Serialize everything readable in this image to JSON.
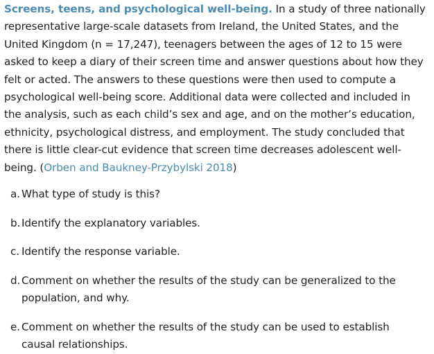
{
  "exercise": {
    "title": "Screens, teens, and psychological well-being.",
    "body": " In a study of three nationally representative large-scale datasets from Ireland, the United States, and the United Kingdom (n = 17,247), teenagers between the ages of 12 to 15 were asked to keep a diary of their screen time and answer questions about how they felt or acted. The answers to these questions were then used to compute a psychological well-being score. Additional data were collected and included in the analysis, such as each child’s sex and age, and on the mother’s education, ethnicity, psychological distress, and employment. The study concluded that there is little clear-cut evidence that screen time decreases adolescent well-being. (",
    "citation": "Orben and Baukney-Przybylski 2018",
    "citation_close": ")"
  },
  "questions": [
    {
      "marker": "a.",
      "text": "What type of study is this?"
    },
    {
      "marker": "b.",
      "text": "Identify the explanatory variables."
    },
    {
      "marker": "c.",
      "text": "Identify the response variable."
    },
    {
      "marker": "d.",
      "text": "Comment on whether the results of the study can be generalized to the population, and why."
    },
    {
      "marker": "e.",
      "text": "Comment on whether the results of the study can be used to establish causal relationships."
    }
  ],
  "colors": {
    "link": "#4b8bb0",
    "text": "#1f1f1f",
    "background": "#ffffff"
  }
}
